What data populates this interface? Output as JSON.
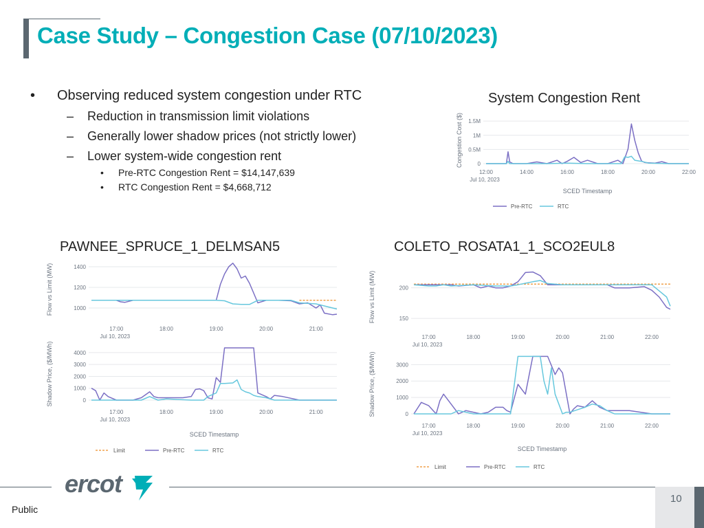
{
  "slide": {
    "title": "Case Study – Congestion Case (07/10/2023)",
    "footer_label": "Public",
    "page_number": "10",
    "logo_text": "ercot"
  },
  "bullets": {
    "level1": {
      "mark": "•",
      "text": "Observing reduced system congestion under RTC"
    },
    "level2": [
      {
        "mark": "–",
        "text": "Reduction in transmission limit violations"
      },
      {
        "mark": "–",
        "text": "Generally lower shadow prices (not strictly lower)"
      },
      {
        "mark": "–",
        "text": "Lower system-wide congestion rent"
      }
    ],
    "level3": [
      {
        "mark": "•",
        "text": "Pre-RTC Congestion Rent = $14,147,639"
      },
      {
        "mark": "•",
        "text": "RTC Congestion Rent = $4,668,712"
      }
    ]
  },
  "headings": {
    "system": "System Congestion Rent",
    "pawnee": "PAWNEE_SPRUCE_1_DELMSAN5",
    "coleto": "COLETO_ROSATA1_1_SCO2EUL8"
  },
  "colors": {
    "title": "#00aeb7",
    "pre_rtc": "#7b6fc4",
    "rtc": "#66c7dd",
    "limit": "#f0a04b",
    "accent_gray": "#5b6770"
  },
  "chart_data": [
    {
      "type": "line",
      "title": "System Congestion Rent",
      "ylabel": "Congestion Cost ($)",
      "xlabel": "SCED Timestamp",
      "date_label": "Jul 10, 2023",
      "x_ticks": [
        "12:00",
        "14:00",
        "16:00",
        "18:00",
        "20:00",
        "22:00"
      ],
      "y_ticks": [
        "0",
        "0.5M",
        "1M",
        "1.5M"
      ],
      "ylim": [
        0,
        1650000
      ],
      "legend": [
        "Pre-RTC",
        "RTC"
      ],
      "series": [
        {
          "name": "Pre-RTC",
          "x": [
            "12:00",
            "13:00",
            "13:05",
            "13:10",
            "13:20",
            "14:00",
            "14:30",
            "15:00",
            "15:30",
            "15:45",
            "16:00",
            "16:20",
            "16:40",
            "17:00",
            "17:30",
            "18:00",
            "18:30",
            "18:45",
            "19:00",
            "19:10",
            "19:20",
            "19:30",
            "19:40",
            "19:50",
            "20:00",
            "20:20",
            "20:40",
            "21:00",
            "22:00"
          ],
          "y": [
            0,
            0,
            420000,
            60000,
            0,
            0,
            60000,
            0,
            120000,
            0,
            80000,
            220000,
            40000,
            120000,
            0,
            0,
            120000,
            0,
            520000,
            1400000,
            820000,
            380000,
            90000,
            40000,
            30000,
            20000,
            70000,
            0,
            0
          ]
        },
        {
          "name": "RTC",
          "x": [
            "12:00",
            "13:00",
            "13:05",
            "13:10",
            "14:00",
            "15:00",
            "16:00",
            "17:00",
            "18:00",
            "18:40",
            "18:50",
            "19:00",
            "19:10",
            "19:20",
            "19:40",
            "20:00",
            "21:00",
            "22:00"
          ],
          "y": [
            0,
            0,
            80000,
            0,
            0,
            0,
            20000,
            0,
            0,
            0,
            240000,
            220000,
            260000,
            120000,
            80000,
            20000,
            0,
            0
          ]
        }
      ]
    },
    {
      "type": "line",
      "title": "PAWNEE_SPRUCE_1_DELMSAN5",
      "panel": "Flow vs Limit",
      "ylabel": "Flow vs Limit (MW)",
      "x_ticks": [
        "17:00",
        "18:00",
        "19:00",
        "20:00",
        "21:00"
      ],
      "y_ticks": [
        "1000",
        "1200",
        "1400"
      ],
      "ylim": [
        920,
        1440
      ],
      "date_label": "Jul 10, 2023",
      "series": [
        {
          "name": "Pre-RTC",
          "x": [
            "16:30",
            "17:00",
            "17:05",
            "17:10",
            "17:20",
            "18:00",
            "18:30",
            "18:50",
            "19:00",
            "19:05",
            "19:10",
            "19:15",
            "19:20",
            "19:25",
            "19:30",
            "19:35",
            "19:40",
            "19:50",
            "20:00",
            "20:15",
            "20:30",
            "20:40",
            "20:50",
            "21:00",
            "21:05",
            "21:10",
            "21:20",
            "21:25"
          ],
          "y": [
            1075,
            1075,
            1060,
            1055,
            1075,
            1075,
            1075,
            1075,
            1075,
            1230,
            1330,
            1400,
            1435,
            1380,
            1290,
            1310,
            1240,
            1050,
            1075,
            1075,
            1070,
            1040,
            1050,
            1000,
            1030,
            950,
            935,
            940
          ]
        },
        {
          "name": "RTC",
          "x": [
            "16:30",
            "17:00",
            "18:00",
            "18:30",
            "18:50",
            "19:00",
            "19:10",
            "19:20",
            "19:30",
            "19:40",
            "19:50",
            "20:00",
            "20:15",
            "20:30",
            "20:40",
            "21:00",
            "21:20",
            "21:25"
          ],
          "y": [
            1075,
            1075,
            1075,
            1075,
            1075,
            1075,
            1070,
            1040,
            1035,
            1035,
            1075,
            1075,
            1075,
            1075,
            1050,
            1040,
            1000,
            990
          ]
        },
        {
          "name": "Limit",
          "x": [
            "20:40",
            "21:25"
          ],
          "y": [
            1075,
            1075
          ]
        }
      ]
    },
    {
      "type": "line",
      "title": "PAWNEE_SPRUCE_1_DELMSAN5",
      "panel": "Shadow Price",
      "ylabel": "Shadow Price, ($/MWh)",
      "xlabel": "SCED Timestamp",
      "x_ticks": [
        "17:00",
        "18:00",
        "19:00",
        "20:00",
        "21:00"
      ],
      "y_ticks": [
        "0",
        "1000",
        "2000",
        "3000",
        "4000"
      ],
      "ylim": [
        0,
        4400
      ],
      "date_label": "Jul 10, 2023",
      "legend": [
        "Limit",
        "Pre-RTC",
        "RTC"
      ],
      "series": [
        {
          "name": "Pre-RTC",
          "x": [
            "16:30",
            "16:35",
            "16:40",
            "16:45",
            "16:50",
            "17:00",
            "17:10",
            "17:20",
            "17:30",
            "17:40",
            "17:45",
            "17:50",
            "18:00",
            "18:20",
            "18:30",
            "18:35",
            "18:40",
            "18:45",
            "18:50",
            "18:55",
            "19:00",
            "19:05",
            "19:10",
            "19:15",
            "19:20",
            "19:45",
            "19:50",
            "20:00",
            "20:05",
            "20:10",
            "20:20",
            "20:40",
            "21:00",
            "21:25"
          ],
          "y": [
            1000,
            800,
            0,
            600,
            300,
            0,
            0,
            0,
            200,
            700,
            300,
            200,
            200,
            200,
            300,
            900,
            950,
            800,
            200,
            100,
            1900,
            1500,
            4400,
            4400,
            4400,
            4400,
            600,
            300,
            100,
            400,
            300,
            0,
            0,
            0
          ]
        },
        {
          "name": "RTC",
          "x": [
            "16:30",
            "17:00",
            "17:30",
            "17:40",
            "17:50",
            "18:00",
            "18:30",
            "18:45",
            "18:50",
            "19:00",
            "19:05",
            "19:10",
            "19:20",
            "19:25",
            "19:30",
            "19:35",
            "19:40",
            "19:45",
            "19:50",
            "20:00",
            "20:10",
            "20:30",
            "21:00",
            "21:25"
          ],
          "y": [
            0,
            0,
            0,
            300,
            0,
            100,
            0,
            0,
            300,
            600,
            1400,
            1400,
            1450,
            1700,
            900,
            700,
            600,
            400,
            300,
            200,
            0,
            0,
            0,
            0
          ]
        }
      ]
    },
    {
      "type": "line",
      "title": "COLETO_ROSATA1_1_SCO2EUL8",
      "panel": "Flow vs Limit",
      "ylabel": "Flow vs Limit (MW)",
      "x_ticks": [
        "17:00",
        "18:00",
        "19:00",
        "20:00",
        "21:00",
        "22:00"
      ],
      "y_ticks": [
        "150",
        "200"
      ],
      "ylim": [
        140,
        230
      ],
      "date_label": "Jul 10, 2023",
      "series": [
        {
          "name": "Pre-RTC",
          "x": [
            "16:40",
            "17:00",
            "17:30",
            "17:40",
            "18:00",
            "18:10",
            "18:20",
            "18:30",
            "18:40",
            "18:50",
            "19:00",
            "19:10",
            "19:20",
            "19:30",
            "19:40",
            "19:50",
            "20:00",
            "20:30",
            "21:00",
            "21:10",
            "21:30",
            "21:50",
            "22:00",
            "22:10",
            "22:20",
            "22:25"
          ],
          "y": [
            205,
            205,
            205,
            203,
            205,
            200,
            203,
            200,
            200,
            203,
            210,
            225,
            226,
            220,
            205,
            205,
            205,
            205,
            205,
            200,
            200,
            202,
            196,
            185,
            168,
            165
          ]
        },
        {
          "name": "RTC",
          "x": [
            "16:40",
            "17:00",
            "17:10",
            "17:20",
            "17:30",
            "18:00",
            "18:30",
            "18:50",
            "19:00",
            "19:20",
            "19:30",
            "19:40",
            "20:00",
            "20:30",
            "21:00",
            "21:50",
            "22:00",
            "22:10",
            "22:20",
            "22:25"
          ],
          "y": [
            205,
            203,
            203,
            205,
            203,
            205,
            203,
            203,
            205,
            210,
            212,
            207,
            205,
            205,
            205,
            205,
            205,
            195,
            185,
            170
          ]
        },
        {
          "name": "Limit",
          "x": [
            "16:40",
            "22:25"
          ],
          "y": [
            206,
            206
          ]
        }
      ]
    },
    {
      "type": "line",
      "title": "COLETO_ROSATA1_1_SCO2EUL8",
      "panel": "Shadow Price",
      "ylabel": "Shadow Price, ($/MWh)",
      "xlabel": "SCED Timestamp",
      "x_ticks": [
        "17:00",
        "18:00",
        "19:00",
        "20:00",
        "21:00",
        "22:00"
      ],
      "y_ticks": [
        "0",
        "1000",
        "2000",
        "3000"
      ],
      "ylim": [
        0,
        3600
      ],
      "date_label": "Jul 10, 2023",
      "legend": [
        "Limit",
        "Pre-RTC",
        "RTC"
      ],
      "series": [
        {
          "name": "Pre-RTC",
          "x": [
            "16:40",
            "16:50",
            "17:00",
            "17:10",
            "17:15",
            "17:20",
            "17:30",
            "17:40",
            "17:50",
            "18:00",
            "18:10",
            "18:20",
            "18:30",
            "18:40",
            "18:45",
            "18:50",
            "19:00",
            "19:10",
            "19:20",
            "19:30",
            "19:40",
            "19:50",
            "19:55",
            "20:00",
            "20:10",
            "20:15",
            "20:20",
            "20:30",
            "20:40",
            "20:50",
            "21:00",
            "21:10",
            "21:30",
            "22:00",
            "22:25"
          ],
          "y": [
            0,
            700,
            500,
            0,
            800,
            1200,
            600,
            0,
            200,
            100,
            0,
            100,
            400,
            400,
            200,
            100,
            1800,
            1200,
            3500,
            3500,
            3500,
            2400,
            2800,
            2500,
            0,
            300,
            500,
            400,
            800,
            400,
            200,
            200,
            200,
            0,
            0
          ]
        },
        {
          "name": "RTC",
          "x": [
            "16:40",
            "17:00",
            "17:30",
            "17:40",
            "18:00",
            "18:20",
            "18:30",
            "18:40",
            "18:50",
            "19:00",
            "19:05",
            "19:10",
            "19:20",
            "19:30",
            "19:35",
            "19:40",
            "19:45",
            "19:50",
            "20:00",
            "20:05",
            "20:10",
            "20:30",
            "20:40",
            "20:50",
            "21:00",
            "21:10",
            "21:30",
            "22:00",
            "22:25"
          ],
          "y": [
            0,
            0,
            0,
            200,
            0,
            0,
            0,
            0,
            0,
            3500,
            3500,
            3500,
            3500,
            3500,
            2000,
            1200,
            2800,
            1200,
            0,
            100,
            100,
            400,
            600,
            500,
            200,
            0,
            0,
            0,
            0
          ]
        }
      ]
    }
  ]
}
